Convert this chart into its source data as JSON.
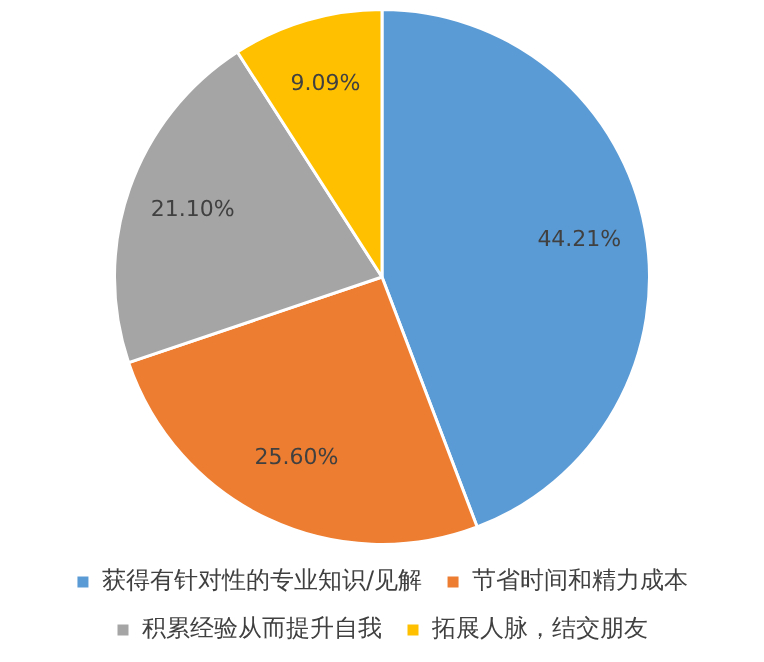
{
  "chart_data": {
    "type": "pie",
    "categories": [
      "获得有针对性的专业知识/见解",
      "节省时间和精力成本",
      "积累经验从而提升自我",
      "拓展人脉，结交朋友"
    ],
    "values": [
      44.21,
      25.6,
      21.1,
      9.09
    ],
    "value_labels": [
      "44.21%",
      "25.60%",
      "21.10%",
      "9.09%"
    ],
    "colors": [
      "#5b9bd5",
      "#ed7d31",
      "#a5a5a5",
      "#ffc000"
    ],
    "legend": "bottom"
  }
}
